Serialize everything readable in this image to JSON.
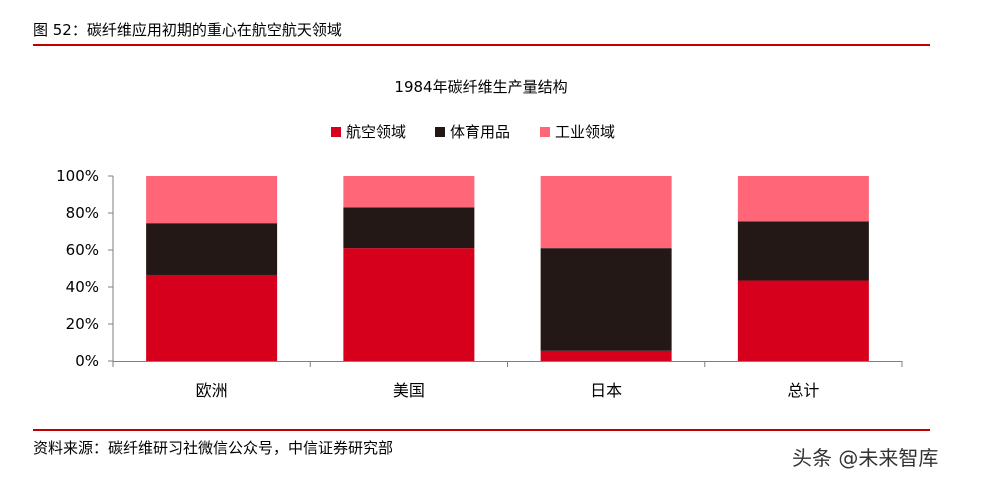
{
  "figure": {
    "title": "图 52：碳纤维应用初期的重心在航空航天领域",
    "source": "资料来源：碳纤维研习社微信公众号，中信证券研究部",
    "watermark": "头条 @未来智库",
    "rule_color": "#c00000"
  },
  "chart_data": {
    "type": "bar",
    "stacked": true,
    "title": "1984年碳纤维生产量结构",
    "categories": [
      "欧洲",
      "美国",
      "日本",
      "总计"
    ],
    "series": [
      {
        "name": "航空领域",
        "color": "#d6001c",
        "values": [
          46.5,
          61,
          5.5,
          43.5
        ]
      },
      {
        "name": "体育用品",
        "color": "#231815",
        "values": [
          28,
          22,
          55.5,
          32
        ]
      },
      {
        "name": "工业领域",
        "color": "#ff6678",
        "values": [
          25.5,
          17,
          39,
          24.5
        ]
      }
    ],
    "y_ticks": [
      "0%",
      "20%",
      "40%",
      "60%",
      "80%",
      "100%"
    ],
    "ylim": [
      0,
      100
    ],
    "legend_position": "top-center",
    "grid": false
  }
}
